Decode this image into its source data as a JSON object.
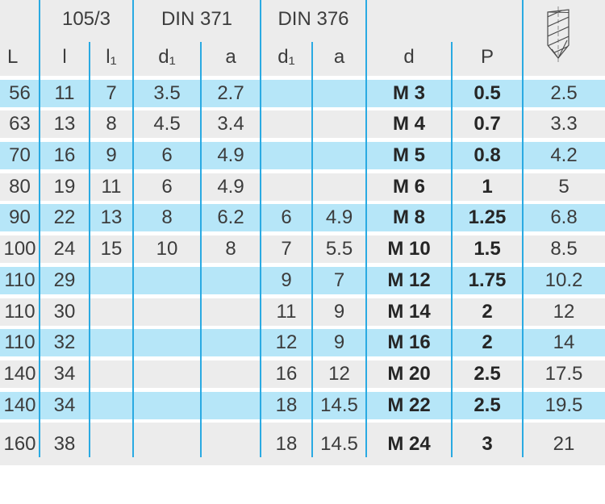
{
  "colors": {
    "row_cyan": "#b6e6f8",
    "row_gray": "#ececec",
    "line_cyan": "#2aaae2",
    "text_regular": "#3c3c3c",
    "text_bold": "#262626"
  },
  "table": {
    "group_headers": [
      "",
      "105/3",
      "DIN 371",
      "DIN 376",
      "",
      ""
    ],
    "column_headers": [
      "L",
      "l",
      "l₁",
      "d₁",
      "a",
      "d₁",
      "a",
      "d",
      "P"
    ],
    "header_icon": "drill-bit-icon",
    "rows": [
      [
        "56",
        "11",
        "7",
        "3.5",
        "2.7",
        "",
        "",
        "M 3",
        "0.5",
        "2.5"
      ],
      [
        "63",
        "13",
        "8",
        "4.5",
        "3.4",
        "",
        "",
        "M 4",
        "0.7",
        "3.3"
      ],
      [
        "70",
        "16",
        "9",
        "6",
        "4.9",
        "",
        "",
        "M 5",
        "0.8",
        "4.2"
      ],
      [
        "80",
        "19",
        "11",
        "6",
        "4.9",
        "",
        "",
        "M 6",
        "1",
        "5"
      ],
      [
        "90",
        "22",
        "13",
        "8",
        "6.2",
        "6",
        "4.9",
        "M 8",
        "1.25",
        "6.8"
      ],
      [
        "100",
        "24",
        "15",
        "10",
        "8",
        "7",
        "5.5",
        "M 10",
        "1.5",
        "8.5"
      ],
      [
        "110",
        "29",
        "",
        "",
        "",
        "9",
        "7",
        "M 12",
        "1.75",
        "10.2"
      ],
      [
        "110",
        "30",
        "",
        "",
        "",
        "11",
        "9",
        "M 14",
        "2",
        "12"
      ],
      [
        "110",
        "32",
        "",
        "",
        "",
        "12",
        "9",
        "M 16",
        "2",
        "14"
      ],
      [
        "140",
        "34",
        "",
        "",
        "",
        "16",
        "12",
        "M 20",
        "2.5",
        "17.5"
      ],
      [
        "140",
        "34",
        "",
        "",
        "",
        "18",
        "14.5",
        "M 22",
        "2.5",
        "19.5"
      ],
      [
        "160",
        "38",
        "",
        "",
        "",
        "18",
        "14.5",
        "M 24",
        "3",
        "21"
      ]
    ]
  }
}
